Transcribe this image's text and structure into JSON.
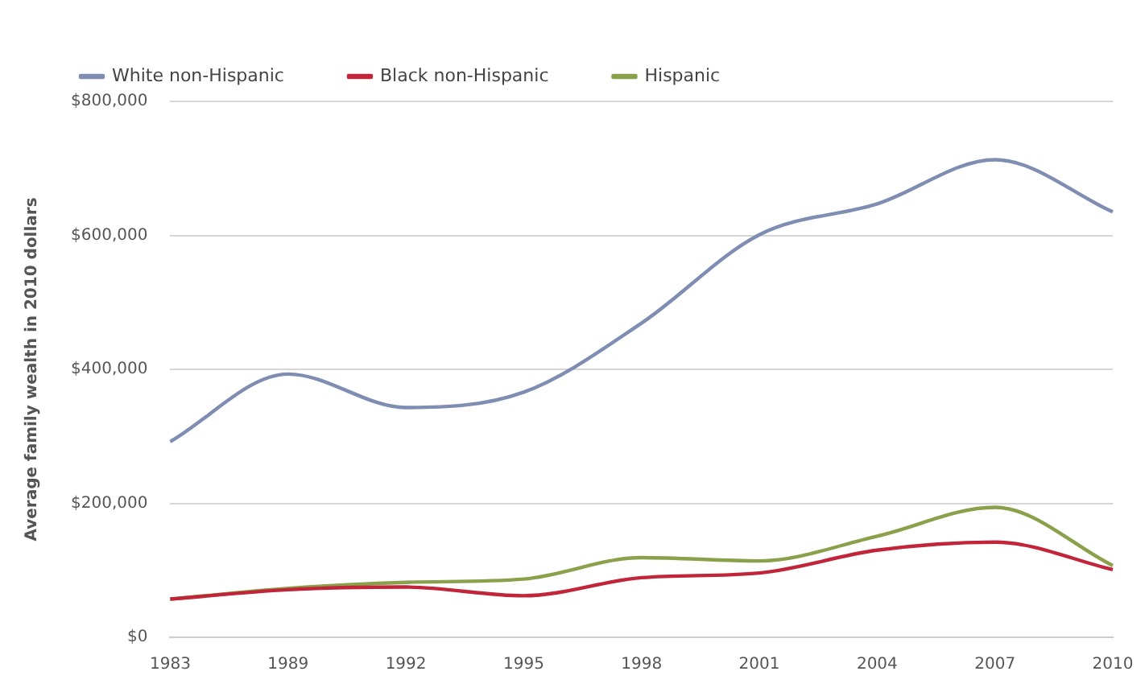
{
  "chart_data": {
    "type": "line",
    "ylabel": "Average family wealth in 2010 dollars",
    "categories": [
      "1983",
      "1989",
      "1992",
      "1995",
      "1998",
      "2001",
      "2004",
      "2007",
      "2010"
    ],
    "series": [
      {
        "name": "White non-Hispanic",
        "color": "#7f8db3",
        "values": [
          292000,
          393000,
          343000,
          366000,
          469000,
          601000,
          647000,
          713000,
          635000
        ]
      },
      {
        "name": "Black non-Hispanic",
        "color": "#c0253a",
        "values": [
          57000,
          71000,
          75000,
          62000,
          89000,
          96000,
          130000,
          142000,
          101000
        ]
      },
      {
        "name": "Hispanic",
        "color": "#8aa04a",
        "values": [
          57000,
          73000,
          82000,
          87000,
          119000,
          114000,
          151000,
          194000,
          107000
        ]
      }
    ],
    "ylim": [
      0,
      800000
    ],
    "yticks": [
      {
        "value": 0,
        "label": "$0"
      },
      {
        "value": 200000,
        "label": "$200,000"
      },
      {
        "value": 400000,
        "label": "$400,000"
      },
      {
        "value": 600000,
        "label": "$600,000"
      },
      {
        "value": 800000,
        "label": "$800,000"
      }
    ],
    "grid": "y",
    "legend": "top left",
    "marker": "none",
    "line_style": "solid"
  }
}
